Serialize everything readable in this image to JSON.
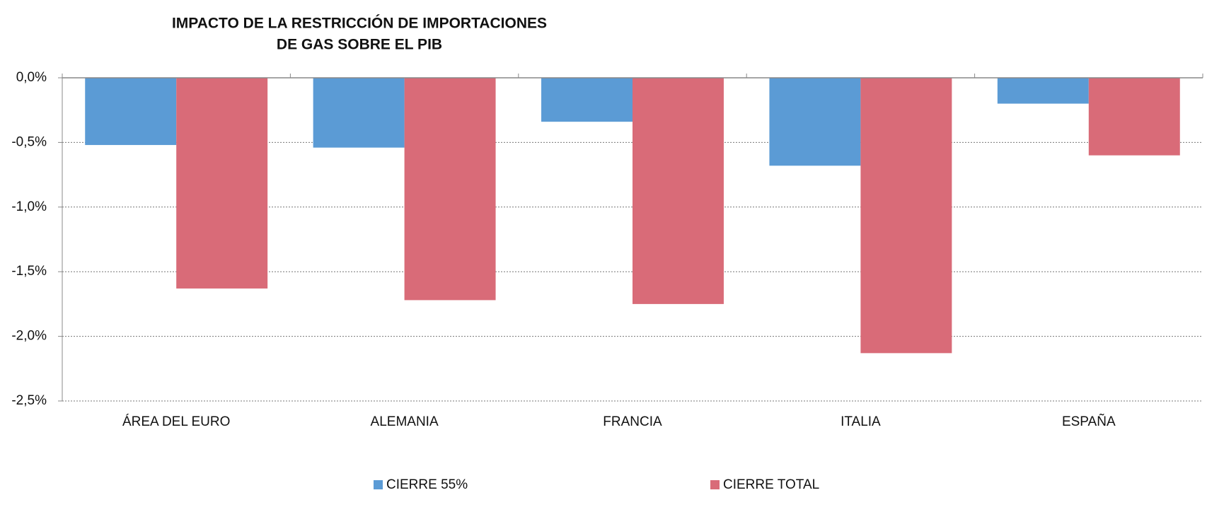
{
  "chart_data": {
    "type": "bar",
    "title": [
      "IMPACTO DE LA RESTRICCIÓN DE IMPORTACIONES",
      "DE GAS SOBRE EL PIB"
    ],
    "categories": [
      "ÁREA DEL EURO",
      "ALEMANIA",
      "FRANCIA",
      "ITALIA",
      "ESPAÑA"
    ],
    "series": [
      {
        "name": "CIERRE 55%",
        "color": "#5b9bd5",
        "values": [
          -0.52,
          -0.54,
          -0.34,
          -0.68,
          -0.2
        ]
      },
      {
        "name": "CIERRE TOTAL",
        "color": "#d96b78",
        "values": [
          -1.63,
          -1.72,
          -1.75,
          -2.13,
          -0.6
        ]
      }
    ],
    "ylim": [
      -2.5,
      0
    ],
    "yticks": [
      {
        "value": 0,
        "label": "0,0%"
      },
      {
        "value": -0.5,
        "label": "-0,5%"
      },
      {
        "value": -1,
        "label": "-1,0%"
      },
      {
        "value": -1.5,
        "label": "-1,5%"
      },
      {
        "value": -2,
        "label": "-2,0%"
      },
      {
        "value": -2.5,
        "label": "-2,5%"
      }
    ],
    "grid": true,
    "legend": "bottom"
  }
}
